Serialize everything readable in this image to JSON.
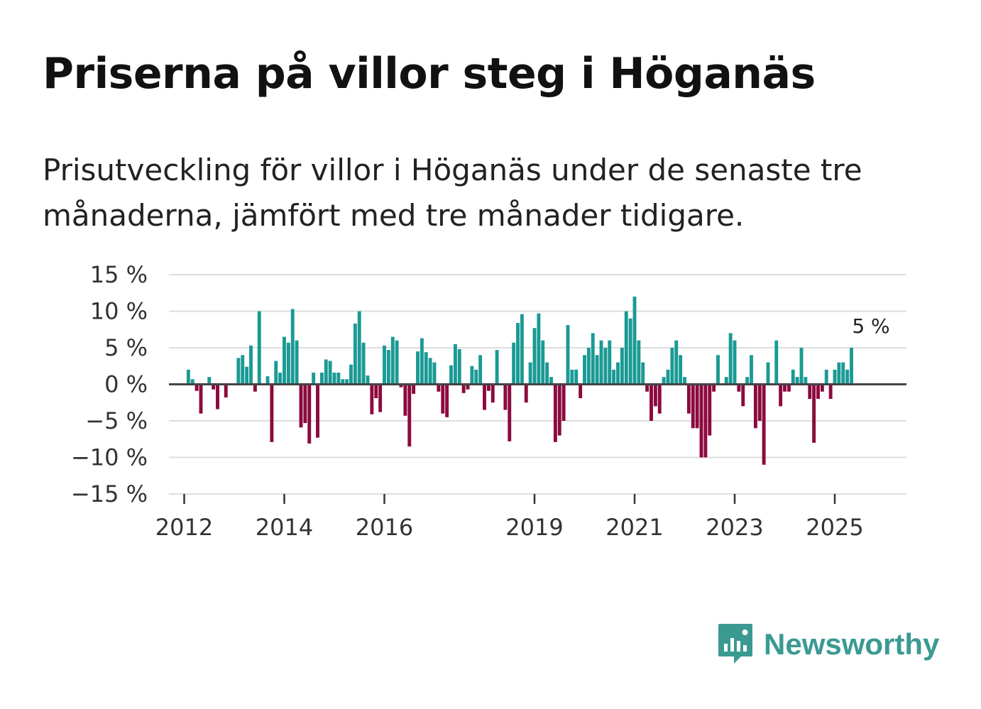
{
  "title": "Priserna på villor steg i Höganäs",
  "subtitle": "Prisutveckling för villor i Höganäs under de senaste tre månaderna, jämfört med tre månader tidigare.",
  "brand": {
    "name": "Newsworthy",
    "color": "#3a9a92",
    "icon": "newsworthy-logo-icon"
  },
  "colors": {
    "positive": "#1a9a94",
    "negative": "#8c0a3e",
    "grid": "#dddddd",
    "zero": "#444444"
  },
  "chart_data": {
    "type": "bar",
    "title": "Priserna på villor steg i Höganäs",
    "xlabel": "",
    "ylabel": "",
    "unit": "%",
    "ylim": [
      -15,
      15
    ],
    "yticks": [
      15,
      10,
      5,
      0,
      -5,
      -10,
      -15
    ],
    "ytick_labels": [
      "15 %",
      "10 %",
      "5 %",
      "0 %",
      "−5 %",
      "−10 %",
      "−15 %"
    ],
    "xticks": [
      2012,
      2014,
      2016,
      2019,
      2021,
      2023,
      2025
    ],
    "xtick_labels": [
      "2012",
      "2014",
      "2016",
      "2019",
      "2021",
      "2023",
      "2025"
    ],
    "start": 2011.75,
    "bars_per_year": 12,
    "annotation": "5 %",
    "values": [
      0,
      0,
      0,
      0,
      2,
      0.7,
      -0.9,
      -4.0,
      0,
      1.0,
      -0.7,
      -3.4,
      0,
      -1.8,
      0,
      0,
      3.6,
      4.0,
      2.4,
      5.3,
      -1.0,
      10.0,
      0,
      1.1,
      -7.9,
      3.2,
      1.6,
      6.5,
      5.7,
      10.3,
      6.0,
      -5.9,
      -5.3,
      -8.1,
      1.6,
      -7.3,
      1.6,
      3.4,
      3.2,
      1.6,
      1.6,
      0.7,
      0.7,
      2.7,
      8.3,
      10.0,
      5.7,
      1.2,
      -4.1,
      -1.9,
      -3.8,
      5.3,
      4.7,
      6.5,
      6.0,
      -0.4,
      -4.3,
      -8.5,
      -1.3,
      4.5,
      6.3,
      4.4,
      3.6,
      3.0,
      -1.0,
      -4.0,
      -4.5,
      2.6,
      5.5,
      4.8,
      -1.2,
      -0.7,
      2.5,
      2.0,
      4.0,
      -3.5,
      -0.9,
      -2.5,
      4.7,
      0,
      -3.5,
      -7.8,
      5.7,
      8.4,
      9.6,
      -2.5,
      3.0,
      7.7,
      9.7,
      6.0,
      3.0,
      1.0,
      -7.9,
      -7.0,
      -5.0,
      8.1,
      2.0,
      2.0,
      -1.9,
      4.0,
      5.0,
      7.0,
      4.0,
      6.0,
      5.0,
      6.0,
      2.0,
      3.0,
      5.0,
      10.0,
      9.0,
      12.0,
      6.0,
      3.0,
      -1.0,
      -5.0,
      -3.0,
      -4.0,
      1.0,
      2.0,
      5.0,
      6.0,
      4.0,
      1.0,
      -4.0,
      -6.0,
      -6.0,
      -10.0,
      -10.0,
      -7.0,
      -1.0,
      4.0,
      0,
      1.0,
      7.0,
      6.0,
      -1.0,
      -3.0,
      1.0,
      4.0,
      -6.0,
      -5.0,
      -11.0,
      3.0,
      0,
      6.0,
      -3.0,
      -1.0,
      -1.0,
      2.0,
      1.0,
      5.0,
      1.0,
      -2.0,
      -8.0,
      -2.0,
      -1.0,
      2.0,
      -2.0,
      2.0,
      3.0,
      3.0,
      2.0,
      5.0
    ]
  }
}
